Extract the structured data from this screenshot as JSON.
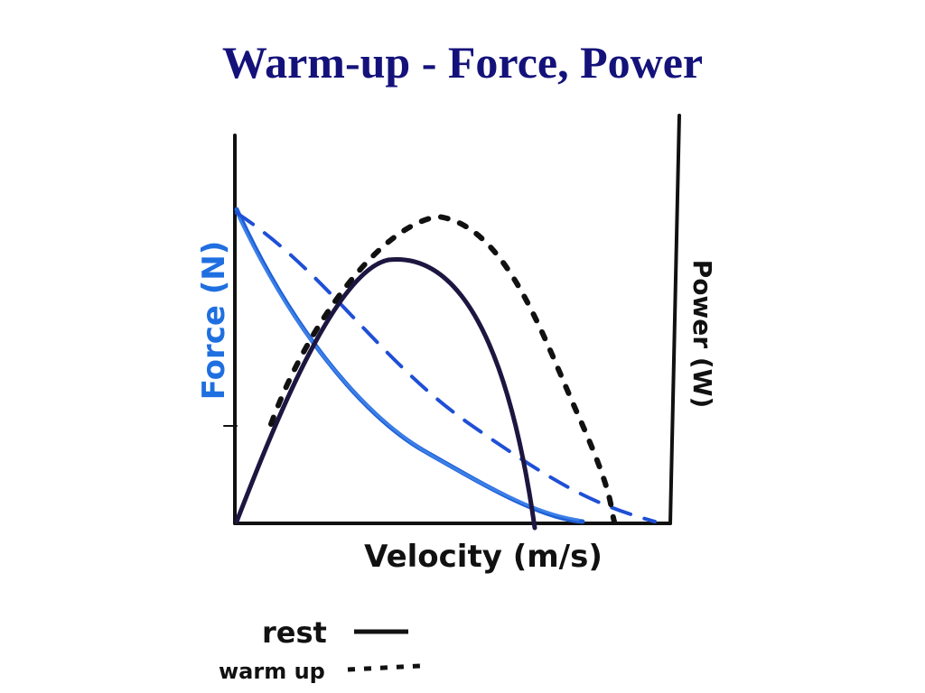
{
  "title": "Warm-up - Force, Power",
  "axes": {
    "x_label": "Velocity (m/s)",
    "y_label": "Force (N)",
    "y2_label": "Power (W)"
  },
  "legend": [
    {
      "label": "rest"
    },
    {
      "label": "warm up"
    }
  ]
}
